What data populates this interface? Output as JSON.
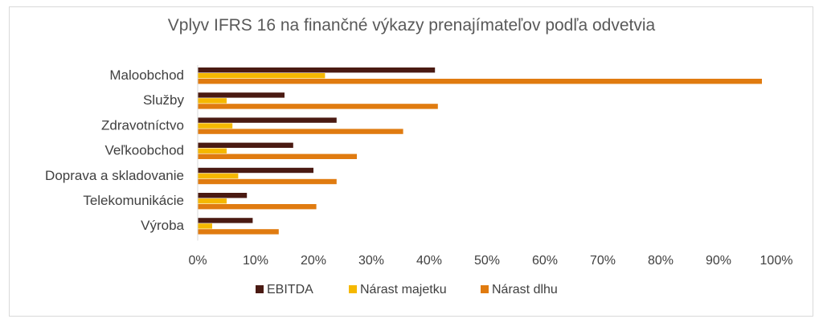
{
  "chart_data": {
    "type": "bar",
    "orientation": "horizontal",
    "title": "Vplyv IFRS 16 na finančné výkazy prenajímateľov podľa odvetvia",
    "categories": [
      "Maloobchod",
      "Služby",
      "Zdravotníctvo",
      "Veľkoobchod",
      "Doprava a skladovanie",
      "Telekomunikácie",
      "Výroba"
    ],
    "series": [
      {
        "name": "EBITDA",
        "color": "#4a1a12",
        "values": [
          41,
          15,
          24,
          16.5,
          20,
          8.5,
          9.5
        ]
      },
      {
        "name": "Nárast majetku",
        "color": "#f5b800",
        "values": [
          22,
          5,
          6,
          5,
          7,
          5,
          2.5
        ]
      },
      {
        "name": "Nárast dlhu",
        "color": "#e07b10",
        "values": [
          97.5,
          41.5,
          35.5,
          27.5,
          24,
          20.5,
          14
        ]
      }
    ],
    "xlim": [
      0,
      100
    ],
    "x_ticks": [
      "0%",
      "10%",
      "20%",
      "30%",
      "40%",
      "50%",
      "60%",
      "70%",
      "80%",
      "90%",
      "100%"
    ],
    "grid": false,
    "legend_position": "bottom"
  }
}
